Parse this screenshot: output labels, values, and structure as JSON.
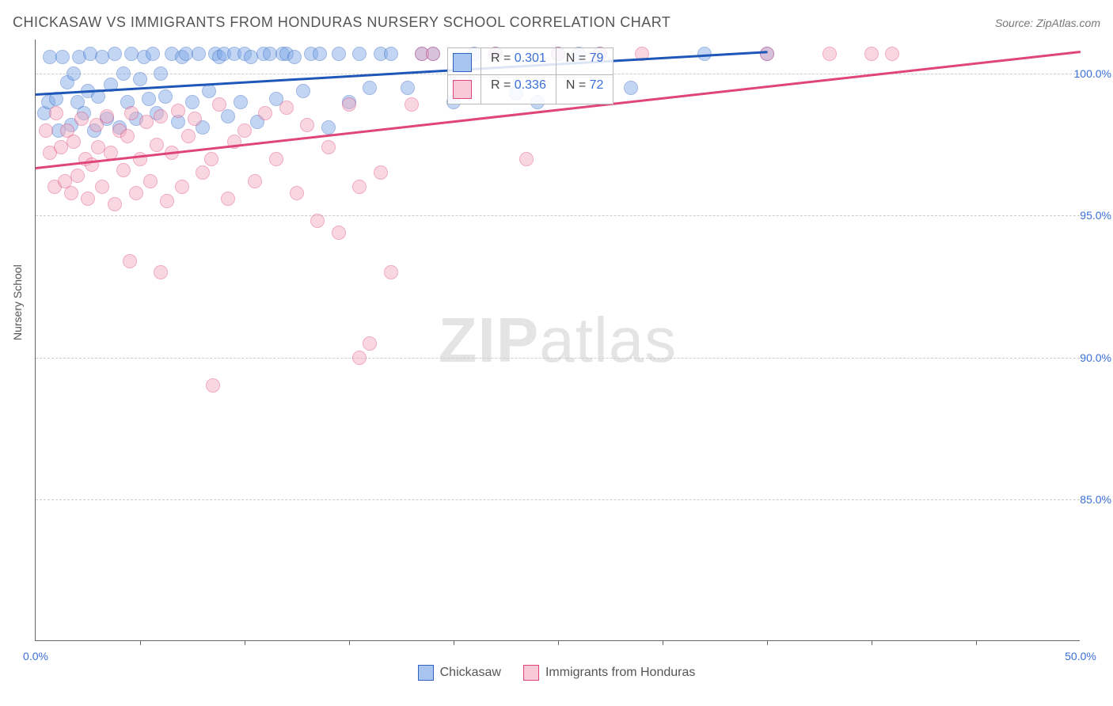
{
  "title": "CHICKASAW VS IMMIGRANTS FROM HONDURAS NURSERY SCHOOL CORRELATION CHART",
  "source": "Source: ZipAtlas.com",
  "yaxis_label": "Nursery School",
  "watermark_a": "ZIP",
  "watermark_b": "atlas",
  "chart": {
    "type": "scatter",
    "xlim": [
      0,
      50
    ],
    "ylim": [
      80,
      101.2
    ],
    "xticks": [
      0,
      50
    ],
    "xtick_labels": [
      "0.0%",
      "50.0%"
    ],
    "xminor_positions": [
      5,
      10,
      15,
      20,
      25,
      30,
      35,
      40,
      45
    ],
    "yticks": [
      85,
      90,
      95,
      100
    ],
    "ytick_labels": [
      "85.0%",
      "90.0%",
      "95.0%",
      "100.0%"
    ],
    "grid_color": "#cccccc",
    "background_color": "#ffffff",
    "point_radius": 9,
    "point_opacity": 0.45,
    "series": [
      {
        "name": "Chickasaw",
        "fill": "#7aa6e8",
        "stroke": "#2f63c0",
        "trend_color": "#1f57b8",
        "swatch_fill": "#a8c4f0",
        "swatch_stroke": "#2f63c0",
        "stats": {
          "R": "0.301",
          "N": "79"
        },
        "trend": {
          "x1": 0,
          "y1": 99.3,
          "x2": 35,
          "y2": 100.8
        },
        "points": [
          [
            0.4,
            98.6
          ],
          [
            0.6,
            99.0
          ],
          [
            0.7,
            100.6
          ],
          [
            1.0,
            99.1
          ],
          [
            1.1,
            98.0
          ],
          [
            1.3,
            100.6
          ],
          [
            1.5,
            99.7
          ],
          [
            1.7,
            98.2
          ],
          [
            1.8,
            100.0
          ],
          [
            2.0,
            99.0
          ],
          [
            2.1,
            100.6
          ],
          [
            2.3,
            98.6
          ],
          [
            2.5,
            99.4
          ],
          [
            2.6,
            100.7
          ],
          [
            2.8,
            98.0
          ],
          [
            3.0,
            99.2
          ],
          [
            3.2,
            100.6
          ],
          [
            3.4,
            98.4
          ],
          [
            3.6,
            99.6
          ],
          [
            3.8,
            100.7
          ],
          [
            4.0,
            98.1
          ],
          [
            4.2,
            100.0
          ],
          [
            4.4,
            99.0
          ],
          [
            4.6,
            100.7
          ],
          [
            4.8,
            98.4
          ],
          [
            5.0,
            99.8
          ],
          [
            5.2,
            100.6
          ],
          [
            5.4,
            99.1
          ],
          [
            5.6,
            100.7
          ],
          [
            5.8,
            98.6
          ],
          [
            6.0,
            100.0
          ],
          [
            6.2,
            99.2
          ],
          [
            6.5,
            100.7
          ],
          [
            6.8,
            98.3
          ],
          [
            7.0,
            100.6
          ],
          [
            7.2,
            100.7
          ],
          [
            7.5,
            99.0
          ],
          [
            7.8,
            100.7
          ],
          [
            8.0,
            98.1
          ],
          [
            8.3,
            99.4
          ],
          [
            8.6,
            100.7
          ],
          [
            8.8,
            100.6
          ],
          [
            9.0,
            100.7
          ],
          [
            9.2,
            98.5
          ],
          [
            9.5,
            100.7
          ],
          [
            9.8,
            99.0
          ],
          [
            10.0,
            100.7
          ],
          [
            10.3,
            100.6
          ],
          [
            10.6,
            98.3
          ],
          [
            10.9,
            100.7
          ],
          [
            11.2,
            100.7
          ],
          [
            11.5,
            99.1
          ],
          [
            11.8,
            100.7
          ],
          [
            12.0,
            100.7
          ],
          [
            12.4,
            100.6
          ],
          [
            12.8,
            99.4
          ],
          [
            13.2,
            100.7
          ],
          [
            13.6,
            100.7
          ],
          [
            14.0,
            98.1
          ],
          [
            14.5,
            100.7
          ],
          [
            15.0,
            99.0
          ],
          [
            15.5,
            100.7
          ],
          [
            16.0,
            99.5
          ],
          [
            16.5,
            100.7
          ],
          [
            17.0,
            100.7
          ],
          [
            17.8,
            99.5
          ],
          [
            18.5,
            100.7
          ],
          [
            19.0,
            100.7
          ],
          [
            20.0,
            99.0
          ],
          [
            21.0,
            100.7
          ],
          [
            22.0,
            100.7
          ],
          [
            23.0,
            99.3
          ],
          [
            24.0,
            99.0
          ],
          [
            25.0,
            100.7
          ],
          [
            26.0,
            100.7
          ],
          [
            27.0,
            100.7
          ],
          [
            28.5,
            99.5
          ],
          [
            32.0,
            100.7
          ],
          [
            35.0,
            100.7
          ]
        ]
      },
      {
        "name": "Immigrants from Honduras",
        "fill": "#f3a8bb",
        "stroke": "#e0457a",
        "trend_color": "#e0457a",
        "swatch_fill": "#f8c9d6",
        "swatch_stroke": "#e0457a",
        "stats": {
          "R": "0.336",
          "N": "72"
        },
        "trend": {
          "x1": 0,
          "y1": 96.7,
          "x2": 50,
          "y2": 100.8
        },
        "points": [
          [
            0.5,
            98.0
          ],
          [
            0.7,
            97.2
          ],
          [
            0.9,
            96.0
          ],
          [
            1.0,
            98.6
          ],
          [
            1.2,
            97.4
          ],
          [
            1.4,
            96.2
          ],
          [
            1.5,
            98.0
          ],
          [
            1.7,
            95.8
          ],
          [
            1.8,
            97.6
          ],
          [
            2.0,
            96.4
          ],
          [
            2.2,
            98.4
          ],
          [
            2.4,
            97.0
          ],
          [
            2.5,
            95.6
          ],
          [
            2.7,
            96.8
          ],
          [
            2.9,
            98.2
          ],
          [
            3.0,
            97.4
          ],
          [
            3.2,
            96.0
          ],
          [
            3.4,
            98.5
          ],
          [
            3.6,
            97.2
          ],
          [
            3.8,
            95.4
          ],
          [
            4.0,
            98.0
          ],
          [
            4.2,
            96.6
          ],
          [
            4.4,
            97.8
          ],
          [
            4.6,
            98.6
          ],
          [
            4.8,
            95.8
          ],
          [
            5.0,
            97.0
          ],
          [
            5.3,
            98.3
          ],
          [
            5.5,
            96.2
          ],
          [
            5.8,
            97.5
          ],
          [
            6.0,
            98.5
          ],
          [
            6.3,
            95.5
          ],
          [
            6.5,
            97.2
          ],
          [
            6.8,
            98.7
          ],
          [
            7.0,
            96.0
          ],
          [
            7.3,
            97.8
          ],
          [
            7.6,
            98.4
          ],
          [
            8.0,
            96.5
          ],
          [
            8.4,
            97.0
          ],
          [
            8.8,
            98.9
          ],
          [
            9.2,
            95.6
          ],
          [
            9.5,
            97.6
          ],
          [
            10.0,
            98.0
          ],
          [
            10.5,
            96.2
          ],
          [
            11.0,
            98.6
          ],
          [
            11.5,
            97.0
          ],
          [
            12.0,
            98.8
          ],
          [
            12.5,
            95.8
          ],
          [
            13.0,
            98.2
          ],
          [
            13.5,
            94.8
          ],
          [
            14.0,
            97.4
          ],
          [
            14.5,
            94.4
          ],
          [
            15.0,
            98.9
          ],
          [
            15.5,
            96.0
          ],
          [
            16.0,
            90.5
          ],
          [
            16.5,
            96.5
          ],
          [
            17.0,
            93.0
          ],
          [
            18.0,
            98.9
          ],
          [
            18.5,
            100.7
          ],
          [
            19.0,
            100.7
          ],
          [
            22.0,
            100.7
          ],
          [
            23.5,
            97.0
          ],
          [
            8.5,
            89.0
          ],
          [
            6.0,
            93.0
          ],
          [
            15.5,
            90.0
          ],
          [
            4.5,
            93.4
          ],
          [
            25.0,
            100.7
          ],
          [
            27.0,
            100.7
          ],
          [
            29.0,
            100.7
          ],
          [
            35.0,
            100.7
          ],
          [
            40.0,
            100.7
          ],
          [
            38.0,
            100.7
          ],
          [
            41.0,
            100.7
          ]
        ]
      }
    ]
  },
  "legend": {
    "items": [
      {
        "label": "Chickasaw",
        "fill": "#a8c4f0",
        "stroke": "#2f63c0"
      },
      {
        "label": "Immigrants from Honduras",
        "fill": "#f8c9d6",
        "stroke": "#e0457a"
      }
    ]
  }
}
